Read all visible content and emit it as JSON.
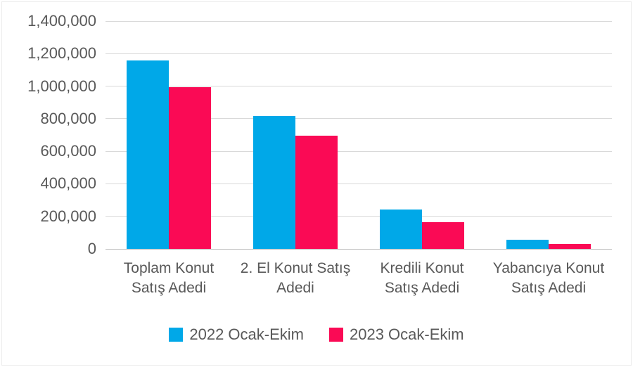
{
  "chart_data": {
    "type": "bar",
    "title": "",
    "xlabel": "",
    "ylabel": "",
    "categories": [
      "Toplam Konut Satış Adedi",
      "2. El Konut Satış Adedi",
      "Kredili Konut Satış Adedi",
      "Yabancıya Konut Satış Adedi"
    ],
    "category_line_breaks": [
      [
        "Toplam Konut",
        "Satış Adedi"
      ],
      [
        "2. El Konut Satış",
        "Adedi"
      ],
      [
        "Kredili Konut",
        "Satış Adedi"
      ],
      [
        "Yabancıya Konut",
        "Satış Adedi"
      ]
    ],
    "series": [
      {
        "name": "2022 Ocak-Ekim",
        "color": "#00a8e8",
        "values": [
          1160000,
          815000,
          240000,
          55000
        ]
      },
      {
        "name": "2023 Ocak-Ekim",
        "color": "#fa0a55",
        "values": [
          995000,
          695000,
          165000,
          30000
        ]
      }
    ],
    "ylim": [
      0,
      1400000
    ],
    "ytick_step": 200000,
    "ytick_labels": [
      "0",
      "200,000",
      "400,000",
      "600,000",
      "800,000",
      "1,000,000",
      "1,200,000",
      "1,400,000"
    ],
    "grid": true,
    "legend_position": "bottom"
  },
  "colors": {
    "gridline": "#d9d9d9",
    "axis_line": "#bfbfbf",
    "tick_text": "#595959",
    "series_2022": "#00a8e8",
    "series_2023": "#fa0a55"
  }
}
